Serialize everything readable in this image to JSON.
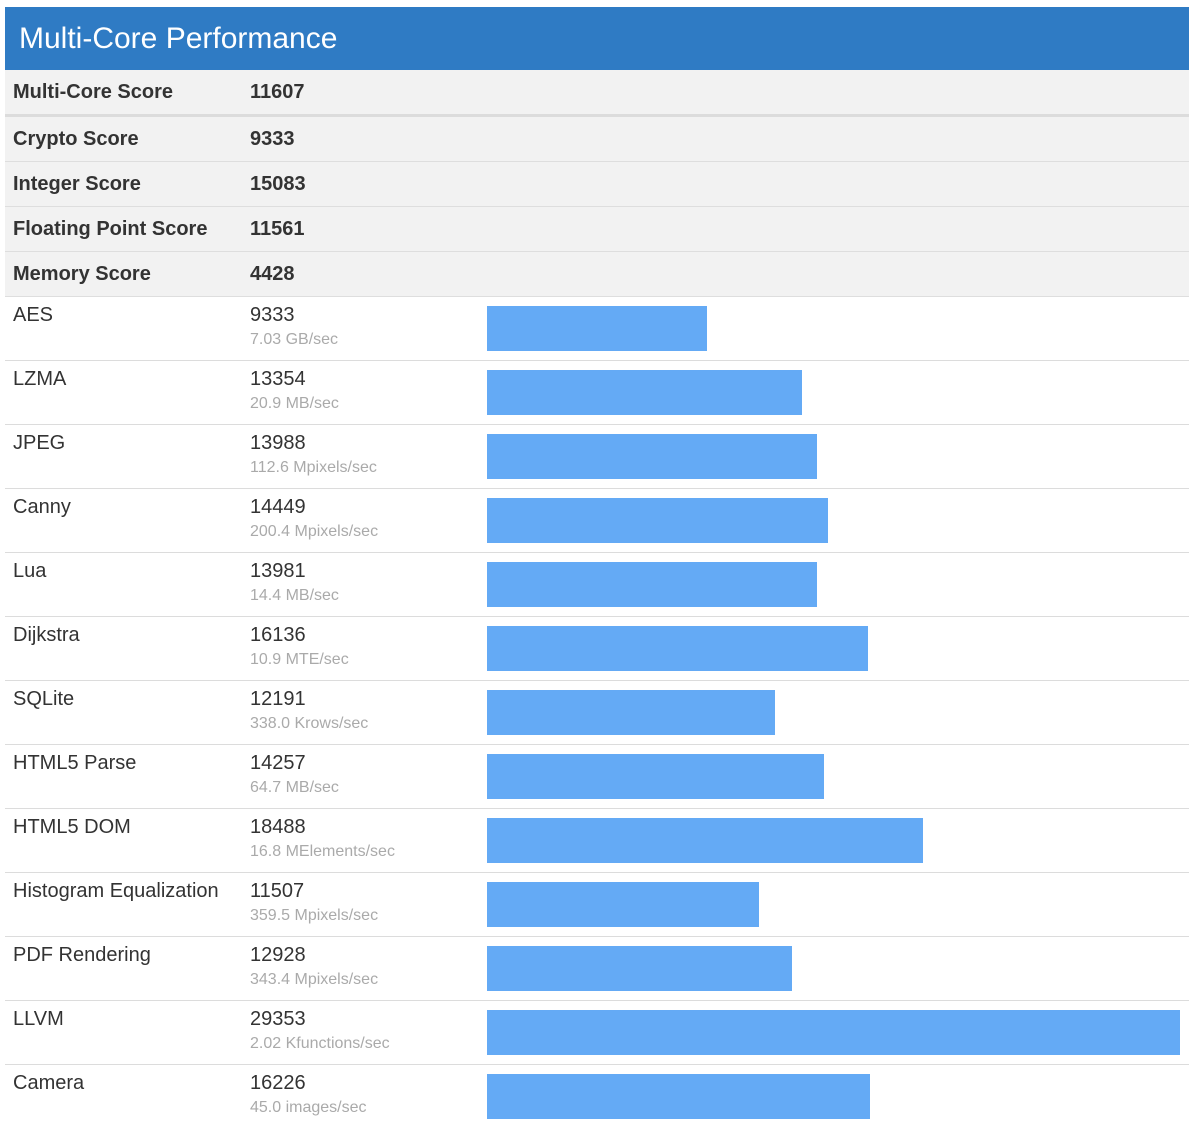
{
  "header": {
    "title": "Multi-Core Performance"
  },
  "summary": [
    {
      "label": "Multi-Core Score",
      "value": "11607"
    },
    {
      "label": "Crypto Score",
      "value": "9333"
    },
    {
      "label": "Integer Score",
      "value": "15083"
    },
    {
      "label": "Floating Point Score",
      "value": "11561"
    },
    {
      "label": "Memory Score",
      "value": "4428"
    }
  ],
  "benchmarks": [
    {
      "name": "AES",
      "score": 9333,
      "rate": "7.03 GB/sec"
    },
    {
      "name": "LZMA",
      "score": 13354,
      "rate": "20.9 MB/sec"
    },
    {
      "name": "JPEG",
      "score": 13988,
      "rate": "112.6 Mpixels/sec"
    },
    {
      "name": "Canny",
      "score": 14449,
      "rate": "200.4 Mpixels/sec"
    },
    {
      "name": "Lua",
      "score": 13981,
      "rate": "14.4 MB/sec"
    },
    {
      "name": "Dijkstra",
      "score": 16136,
      "rate": "10.9 MTE/sec"
    },
    {
      "name": "SQLite",
      "score": 12191,
      "rate": "338.0 Krows/sec"
    },
    {
      "name": "HTML5 Parse",
      "score": 14257,
      "rate": "64.7 MB/sec"
    },
    {
      "name": "HTML5 DOM",
      "score": 18488,
      "rate": "16.8 MElements/sec"
    },
    {
      "name": "Histogram Equalization",
      "score": 11507,
      "rate": "359.5 Mpixels/sec"
    },
    {
      "name": "PDF Rendering",
      "score": 12928,
      "rate": "343.4 Mpixels/sec"
    },
    {
      "name": "LLVM",
      "score": 29353,
      "rate": "2.02 Kfunctions/sec"
    },
    {
      "name": "Camera",
      "score": 16226,
      "rate": "45.0 images/sec"
    }
  ],
  "colors": {
    "header": "#2f7bc4",
    "bar": "#64aaf5",
    "summary_bg": "#f2f2f2"
  }
}
